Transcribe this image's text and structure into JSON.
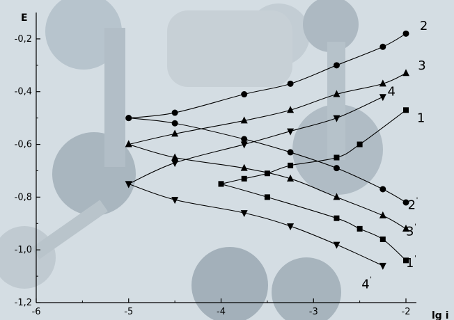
{
  "chart_data": {
    "type": "line",
    "xlabel": "lg i",
    "ylabel": "E",
    "xlim": [
      -6,
      -2
    ],
    "ylim": [
      -1.2,
      -0.1
    ],
    "x_ticks": [
      -6,
      -5,
      -4,
      -3,
      -2
    ],
    "x_tick_labels": [
      "-6",
      "-5",
      "-4",
      "-3",
      "-2"
    ],
    "y_ticks": [
      -0.2,
      -0.4,
      -0.6,
      -0.8,
      -1.0,
      -1.2
    ],
    "y_tick_labels": [
      "-0,2",
      "-0,4",
      "-0,6",
      "-0,8",
      "-1,0",
      "-1,2"
    ],
    "grid": false,
    "background": "photographic watermark (blue-gray)",
    "series": [
      {
        "name": "1",
        "marker": "square",
        "label_pos": [
          -1.88,
          -0.5
        ],
        "x": [
          -4.0,
          -3.75,
          -3.5,
          -3.25,
          -2.75,
          -2.5,
          -2.0
        ],
        "y": [
          -0.75,
          -0.73,
          -0.71,
          -0.68,
          -0.65,
          -0.6,
          -0.47
        ]
      },
      {
        "name": "1'",
        "marker": "square",
        "label_pos": [
          -2.0,
          -1.05
        ],
        "x": [
          -4.0,
          -3.5,
          -2.75,
          -2.5,
          -2.25,
          -2.0
        ],
        "y": [
          -0.75,
          -0.8,
          -0.88,
          -0.92,
          -0.96,
          -1.04
        ]
      },
      {
        "name": "2",
        "marker": "circle",
        "label_pos": [
          -1.85,
          -0.15
        ],
        "x": [
          -5.0,
          -4.5,
          -3.75,
          -3.25,
          -2.75,
          -2.25,
          -2.0
        ],
        "y": [
          -0.5,
          -0.48,
          -0.41,
          -0.37,
          -0.3,
          -0.23,
          -0.18
        ]
      },
      {
        "name": "2'",
        "marker": "circle",
        "label_pos": [
          -1.98,
          -0.83
        ],
        "x": [
          -5.0,
          -4.5,
          -3.75,
          -3.25,
          -2.75,
          -2.25,
          -2.0
        ],
        "y": [
          -0.5,
          -0.52,
          -0.58,
          -0.63,
          -0.69,
          -0.77,
          -0.82
        ]
      },
      {
        "name": "3",
        "marker": "triangle-up",
        "label_pos": [
          -1.87,
          -0.3
        ],
        "x": [
          -5.0,
          -4.5,
          -3.75,
          -3.25,
          -2.75,
          -2.25,
          -2.0
        ],
        "y": [
          -0.6,
          -0.56,
          -0.51,
          -0.47,
          -0.41,
          -0.37,
          -0.33
        ]
      },
      {
        "name": "3'",
        "marker": "triangle-up",
        "label_pos": [
          -2.0,
          -0.93
        ],
        "x": [
          -5.0,
          -4.5,
          -3.75,
          -3.25,
          -2.75,
          -2.25,
          -2.0
        ],
        "y": [
          -0.6,
          -0.65,
          -0.69,
          -0.73,
          -0.8,
          -0.87,
          -0.92
        ]
      },
      {
        "name": "4",
        "marker": "triangle-down",
        "label_pos": [
          -2.2,
          -0.4
        ],
        "x": [
          -5.0,
          -4.5,
          -3.75,
          -3.25,
          -2.75,
          -2.25
        ],
        "y": [
          -0.75,
          -0.67,
          -0.6,
          -0.55,
          -0.5,
          -0.42
        ]
      },
      {
        "name": "4'",
        "marker": "triangle-down",
        "label_pos": [
          -2.48,
          -1.13
        ],
        "x": [
          -5.0,
          -4.5,
          -3.75,
          -3.25,
          -2.75,
          -2.25
        ],
        "y": [
          -0.75,
          -0.81,
          -0.86,
          -0.91,
          -0.98,
          -1.06
        ]
      }
    ]
  }
}
